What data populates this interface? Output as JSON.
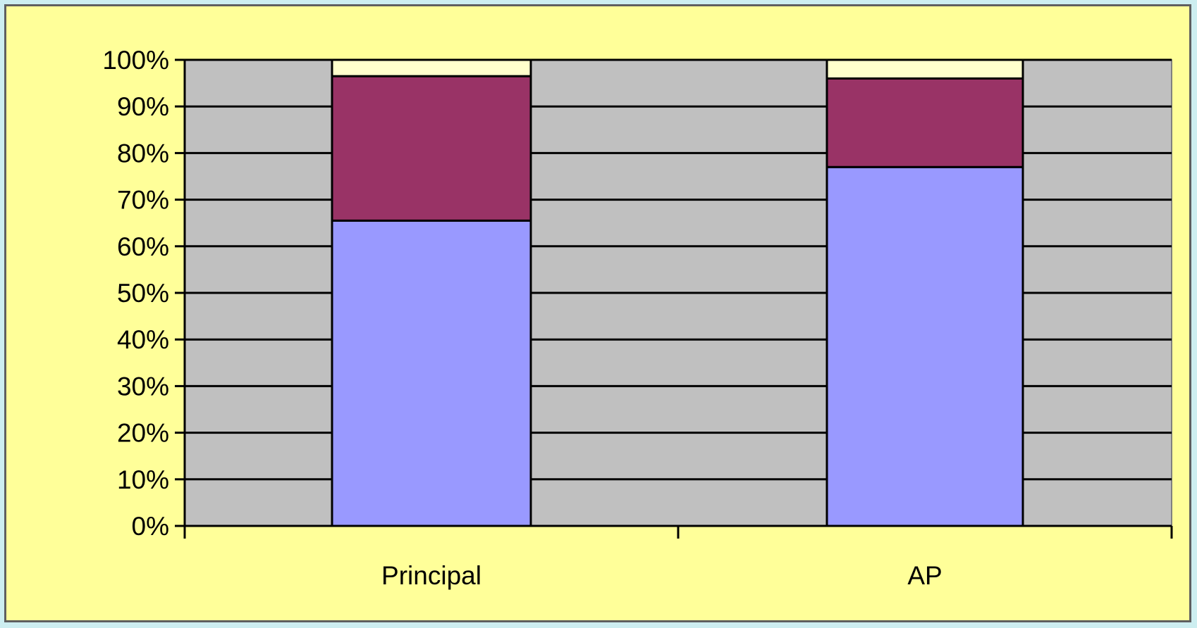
{
  "colors": {
    "background": "#ffff99",
    "plot_area": "#c0c0c0",
    "gridline": "#000000",
    "bar_outline": "#000000"
  },
  "chart_data": {
    "type": "bar",
    "stacked": true,
    "percent": true,
    "title": "",
    "xlabel": "",
    "ylabel": "",
    "categories": [
      "Principal",
      "AP"
    ],
    "ylim": [
      0,
      100
    ],
    "ytick_labels": [
      "0%",
      "10%",
      "20%",
      "30%",
      "40%",
      "50%",
      "60%",
      "70%",
      "80%",
      "90%",
      "100%"
    ],
    "grid": true,
    "legend": "none",
    "series": [
      {
        "color": "#9999ff",
        "values": [
          65.5,
          77
        ]
      },
      {
        "color": "#993366",
        "values": [
          31,
          19
        ]
      },
      {
        "color": "#ffffcc",
        "values": [
          3.5,
          4
        ]
      }
    ]
  }
}
